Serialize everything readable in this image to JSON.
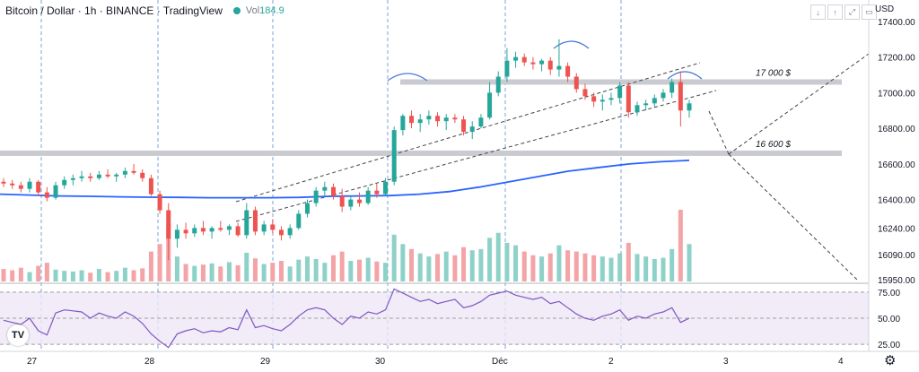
{
  "header": {
    "title": "Bitcoin / Dollar · 1h · BINANCE · TradingView",
    "vol_label": "Vol",
    "vol_value": "184.9",
    "currency": "USD"
  },
  "controls": {
    "down": "↓",
    "up": "↑",
    "expand": "⤢",
    "panel": "▭"
  },
  "logo_text": "TV",
  "settings_icon": "gear-icon",
  "chart_data": {
    "type": "candlestick",
    "price_axis": {
      "ticks": [
        17400,
        17200,
        17000,
        16800,
        16600,
        16400,
        16240,
        16090,
        15950
      ],
      "ylim": [
        15950,
        17450
      ]
    },
    "time_axis": {
      "ticks": [
        "27",
        "28",
        "29",
        "30",
        "Déc",
        "2",
        "3",
        "4"
      ]
    },
    "levels": [
      {
        "label": "17 000 $",
        "price": 17060
      },
      {
        "label": "16 600 $",
        "price": 16660
      }
    ],
    "candles": [
      [
        16500,
        16520,
        16470,
        16490
      ],
      [
        16490,
        16510,
        16460,
        16480
      ],
      [
        16480,
        16500,
        16440,
        16460
      ],
      [
        16460,
        16520,
        16440,
        16500
      ],
      [
        16500,
        16510,
        16420,
        16440
      ],
      [
        16440,
        16470,
        16390,
        16410
      ],
      [
        16410,
        16500,
        16400,
        16480
      ],
      [
        16480,
        16530,
        16460,
        16510
      ],
      [
        16510,
        16540,
        16480,
        16520
      ],
      [
        16520,
        16560,
        16500,
        16530
      ],
      [
        16530,
        16550,
        16500,
        16520
      ],
      [
        16520,
        16560,
        16510,
        16540
      ],
      [
        16540,
        16570,
        16520,
        16530
      ],
      [
        16530,
        16550,
        16500,
        16540
      ],
      [
        16540,
        16580,
        16520,
        16560
      ],
      [
        16560,
        16600,
        16540,
        16550
      ],
      [
        16550,
        16570,
        16500,
        16520
      ],
      [
        16520,
        16540,
        16420,
        16430
      ],
      [
        16430,
        16450,
        16320,
        16340
      ],
      [
        16340,
        16380,
        16060,
        16180
      ],
      [
        16180,
        16260,
        16130,
        16230
      ],
      [
        16230,
        16270,
        16180,
        16210
      ],
      [
        16210,
        16260,
        16190,
        16240
      ],
      [
        16240,
        16280,
        16200,
        16220
      ],
      [
        16220,
        16250,
        16180,
        16240
      ],
      [
        16240,
        16280,
        16220,
        16230
      ],
      [
        16230,
        16260,
        16200,
        16250
      ],
      [
        16250,
        16270,
        16190,
        16200
      ],
      [
        16200,
        16380,
        16180,
        16340
      ],
      [
        16340,
        16360,
        16200,
        16220
      ],
      [
        16220,
        16280,
        16200,
        16260
      ],
      [
        16260,
        16290,
        16210,
        16230
      ],
      [
        16230,
        16250,
        16170,
        16200
      ],
      [
        16200,
        16260,
        16180,
        16240
      ],
      [
        16240,
        16340,
        16230,
        16320
      ],
      [
        16320,
        16400,
        16300,
        16380
      ],
      [
        16380,
        16470,
        16360,
        16450
      ],
      [
        16450,
        16500,
        16420,
        16470
      ],
      [
        16470,
        16490,
        16400,
        16420
      ],
      [
        16420,
        16460,
        16330,
        16360
      ],
      [
        16360,
        16420,
        16340,
        16400
      ],
      [
        16400,
        16440,
        16360,
        16380
      ],
      [
        16380,
        16470,
        16370,
        16450
      ],
      [
        16450,
        16490,
        16410,
        16430
      ],
      [
        16430,
        16520,
        16420,
        16500
      ],
      [
        16500,
        16810,
        16480,
        16790
      ],
      [
        16790,
        16880,
        16760,
        16870
      ],
      [
        16870,
        16900,
        16800,
        16830
      ],
      [
        16830,
        16880,
        16780,
        16850
      ],
      [
        16850,
        16900,
        16820,
        16870
      ],
      [
        16870,
        16890,
        16810,
        16840
      ],
      [
        16840,
        16880,
        16790,
        16860
      ],
      [
        16860,
        16880,
        16830,
        16850
      ],
      [
        16850,
        16870,
        16760,
        16780
      ],
      [
        16780,
        16840,
        16740,
        16810
      ],
      [
        16810,
        16880,
        16800,
        16860
      ],
      [
        16860,
        17060,
        16850,
        17000
      ],
      [
        17000,
        17120,
        16980,
        17090
      ],
      [
        17090,
        17250,
        17060,
        17180
      ],
      [
        17180,
        17230,
        17140,
        17200
      ],
      [
        17200,
        17220,
        17150,
        17170
      ],
      [
        17170,
        17200,
        17130,
        17160
      ],
      [
        17160,
        17190,
        17120,
        17180
      ],
      [
        17180,
        17200,
        17100,
        17130
      ],
      [
        17130,
        17300,
        17090,
        17150
      ],
      [
        17150,
        17170,
        17060,
        17090
      ],
      [
        17090,
        17110,
        17000,
        17020
      ],
      [
        17020,
        17050,
        16960,
        16980
      ],
      [
        16980,
        17000,
        16920,
        16950
      ],
      [
        16950,
        16990,
        16900,
        16960
      ],
      [
        16960,
        17000,
        16930,
        16970
      ],
      [
        16970,
        17060,
        16940,
        17040
      ],
      [
        17040,
        17060,
        16860,
        16890
      ],
      [
        16890,
        16950,
        16870,
        16930
      ],
      [
        16930,
        16960,
        16900,
        16940
      ],
      [
        16940,
        16990,
        16920,
        16970
      ],
      [
        16970,
        17020,
        16950,
        17000
      ],
      [
        17000,
        17080,
        16970,
        17060
      ],
      [
        17060,
        17120,
        16810,
        16900
      ],
      [
        16900,
        16960,
        16860,
        16940
      ]
    ],
    "volume": [
      20,
      18,
      22,
      15,
      25,
      30,
      19,
      17,
      16,
      18,
      14,
      20,
      15,
      17,
      22,
      18,
      21,
      48,
      60,
      92,
      40,
      28,
      25,
      27,
      29,
      24,
      31,
      26,
      46,
      37,
      28,
      30,
      33,
      24,
      35,
      40,
      36,
      30,
      42,
      48,
      33,
      35,
      38,
      32,
      30,
      75,
      60,
      52,
      45,
      40,
      44,
      48,
      42,
      55,
      50,
      52,
      70,
      78,
      62,
      58,
      48,
      42,
      40,
      45,
      58,
      50,
      48,
      45,
      42,
      40,
      38,
      45,
      62,
      44,
      40,
      36,
      38,
      52,
      115,
      60
    ],
    "rsi": {
      "ticks": [
        75,
        50,
        25
      ],
      "ylim": [
        20,
        80
      ],
      "values": [
        48,
        46,
        44,
        50,
        38,
        34,
        55,
        58,
        57,
        56,
        50,
        55,
        52,
        50,
        56,
        52,
        45,
        35,
        28,
        22,
        35,
        38,
        40,
        36,
        38,
        37,
        41,
        39,
        58,
        41,
        43,
        40,
        38,
        44,
        52,
        58,
        60,
        58,
        50,
        44,
        52,
        50,
        56,
        54,
        58,
        78,
        74,
        70,
        66,
        68,
        64,
        66,
        68,
        60,
        62,
        66,
        72,
        74,
        76,
        72,
        70,
        68,
        70,
        64,
        66,
        60,
        54,
        50,
        48,
        52,
        54,
        58,
        48,
        52,
        50,
        54,
        56,
        60,
        46,
        50
      ]
    },
    "ma": [
      16430,
      16425,
      16420,
      16418,
      16415,
      16413,
      16412,
      16410,
      16410,
      16410,
      16412,
      16418,
      16420,
      16422,
      16430,
      16445,
      16470,
      16500,
      16530,
      16560,
      16580,
      16600,
      16612,
      16620
    ],
    "annotations": [
      "Vol 184.9"
    ]
  }
}
